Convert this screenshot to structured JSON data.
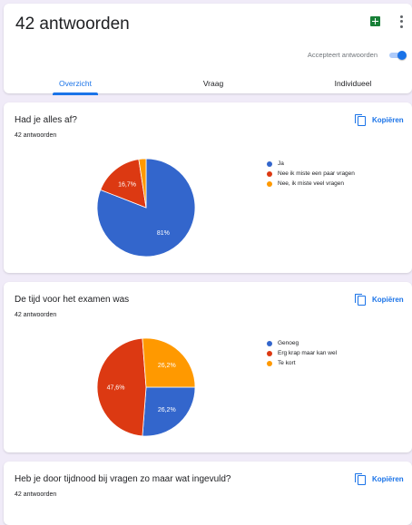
{
  "header": {
    "title": "42 antwoorden",
    "accepting_label": "Accepteert antwoorden",
    "accepting": true,
    "sheets_icon": "google-sheets-icon",
    "more_icon": "more-vert-icon",
    "tabs": [
      {
        "label": "Overzicht",
        "active": true
      },
      {
        "label": "Vraag",
        "active": false
      },
      {
        "label": "Individueel",
        "active": false
      }
    ]
  },
  "colors": {
    "blue": "#3366cc",
    "red": "#dc3912",
    "orange": "#ff9900",
    "accent": "#1a73e8"
  },
  "questions": [
    {
      "title": "Had je alles af?",
      "count": "42 antwoorden",
      "copy_label": "Kopiëren"
    },
    {
      "title": "De tijd voor het examen was",
      "count": "42 antwoorden",
      "copy_label": "Kopiëren"
    },
    {
      "title": "Heb je door tijdnood bij vragen zo maar wat ingevuld?",
      "count": "42 antwoorden",
      "copy_label": "Kopiëren"
    }
  ],
  "chart_data": [
    {
      "type": "pie",
      "categories": [
        "Ja",
        "Nee ik miste een paar vragen",
        "Nee, ik miste veel vragen"
      ],
      "values": [
        81,
        16.7,
        2.4
      ],
      "labels": [
        "81%",
        "16,7%",
        ""
      ],
      "colors": [
        "#3366cc",
        "#dc3912",
        "#ff9900"
      ],
      "legend": "right"
    },
    {
      "type": "pie",
      "categories": [
        "Genoeg",
        "Erg krap maar kan wel",
        "Te kort"
      ],
      "values": [
        26.2,
        47.6,
        26.2
      ],
      "labels": [
        "26,2%",
        "47,6%",
        "26,2%"
      ],
      "colors": [
        "#3366cc",
        "#dc3912",
        "#ff9900"
      ],
      "legend": "right"
    }
  ]
}
